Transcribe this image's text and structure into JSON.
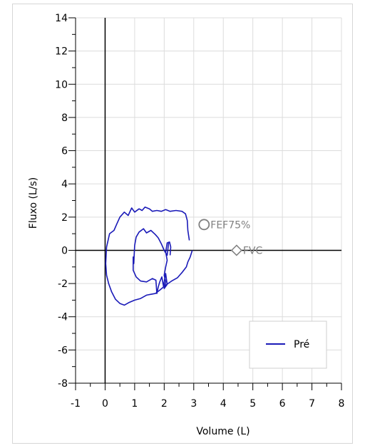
{
  "chart_data": {
    "type": "line",
    "xlabel": "Volume (L)",
    "ylabel": "Fluxo (L/s)",
    "xlim": [
      -1,
      8
    ],
    "ylim": [
      -8,
      14
    ],
    "xticks": [
      "-1",
      "0",
      "1",
      "2",
      "3",
      "4",
      "5",
      "6",
      "7",
      "8"
    ],
    "yticks": [
      "-8",
      "-6",
      "-4",
      "-2",
      "0",
      "2",
      "4",
      "6",
      "8",
      "10",
      "12",
      "14"
    ],
    "grid": true,
    "legend_position": "bottom-right",
    "series": [
      {
        "name": "Pré",
        "color": "#1a1ab8",
        "points": [
          [
            2.85,
            0.6
          ],
          [
            2.8,
            1.2
          ],
          [
            2.78,
            1.8
          ],
          [
            2.72,
            2.2
          ],
          [
            2.6,
            2.35
          ],
          [
            2.4,
            2.4
          ],
          [
            2.2,
            2.35
          ],
          [
            2.05,
            2.45
          ],
          [
            1.9,
            2.35
          ],
          [
            1.75,
            2.4
          ],
          [
            1.6,
            2.35
          ],
          [
            1.5,
            2.5
          ],
          [
            1.35,
            2.6
          ],
          [
            1.25,
            2.4
          ],
          [
            1.15,
            2.5
          ],
          [
            1.0,
            2.3
          ],
          [
            0.9,
            2.55
          ],
          [
            0.78,
            2.1
          ],
          [
            0.65,
            2.3
          ],
          [
            0.5,
            2.0
          ],
          [
            0.4,
            1.6
          ],
          [
            0.3,
            1.2
          ],
          [
            0.15,
            1.0
          ],
          [
            0.05,
            0.2
          ],
          [
            0.02,
            -0.8
          ],
          [
            0.05,
            -1.5
          ],
          [
            0.12,
            -2.0
          ],
          [
            0.22,
            -2.5
          ],
          [
            0.35,
            -2.95
          ],
          [
            0.5,
            -3.2
          ],
          [
            0.65,
            -3.3
          ],
          [
            0.8,
            -3.15
          ],
          [
            1.0,
            -3.0
          ],
          [
            1.2,
            -2.9
          ],
          [
            1.4,
            -2.7
          ],
          [
            1.55,
            -2.65
          ],
          [
            1.7,
            -2.6
          ],
          [
            1.85,
            -2.4
          ],
          [
            2.05,
            -2.1
          ],
          [
            2.25,
            -1.85
          ],
          [
            2.45,
            -1.65
          ],
          [
            2.62,
            -1.3
          ],
          [
            2.75,
            -1.0
          ],
          [
            2.8,
            -0.7
          ],
          [
            2.88,
            -0.4
          ],
          [
            2.95,
            0.0
          ]
        ]
      },
      {
        "name": "",
        "color": "#1a1ab8",
        "points": [
          [
            2.2,
            -0.3
          ],
          [
            2.22,
            0.2
          ],
          [
            2.18,
            0.5
          ],
          [
            2.1,
            0.45
          ],
          [
            2.05,
            -0.1
          ],
          [
            2.1,
            -0.6
          ],
          [
            2.05,
            -1.0
          ],
          [
            2.0,
            -1.5
          ],
          [
            2.05,
            -1.9
          ],
          [
            2.0,
            -2.3
          ],
          [
            2.1,
            -2.05
          ],
          [
            2.05,
            -1.4
          ],
          [
            2.0,
            -1.9
          ],
          [
            1.98,
            -2.2
          ],
          [
            1.92,
            -1.6
          ],
          [
            1.85,
            -1.9
          ],
          [
            1.8,
            -2.2
          ],
          [
            1.75,
            -2.6
          ],
          [
            1.72,
            -1.8
          ],
          [
            1.6,
            -1.7
          ],
          [
            1.4,
            -1.9
          ],
          [
            1.2,
            -1.85
          ],
          [
            1.05,
            -1.6
          ],
          [
            0.95,
            -1.2
          ],
          [
            0.95,
            -0.4
          ],
          [
            0.97,
            -0.8
          ],
          [
            1.0,
            0.3
          ],
          [
            1.05,
            0.8
          ],
          [
            1.15,
            1.1
          ],
          [
            1.3,
            1.3
          ],
          [
            1.4,
            1.05
          ],
          [
            1.55,
            1.2
          ],
          [
            1.7,
            0.95
          ],
          [
            1.8,
            0.75
          ],
          [
            1.9,
            0.4
          ],
          [
            2.0,
            0.0
          ],
          [
            2.1,
            -0.3
          ],
          [
            2.15,
            0.45
          ]
        ]
      }
    ],
    "markers": [
      {
        "name": "FEF75%",
        "x": 3.35,
        "y": 1.55,
        "shape": "circle",
        "color": "#808080"
      },
      {
        "name": "FVC",
        "x": 4.45,
        "y": 0.0,
        "shape": "diamond",
        "color": "#808080"
      }
    ]
  }
}
